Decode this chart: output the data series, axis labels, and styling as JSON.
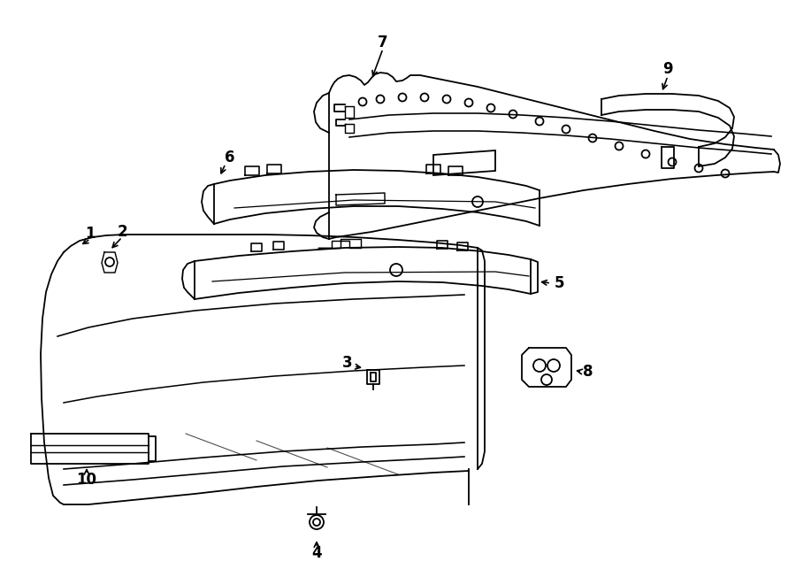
{
  "bg_color": "#ffffff",
  "line_color": "#000000",
  "fig_width": 9.0,
  "fig_height": 6.61,
  "dpi": 100,
  "lw": 1.3
}
